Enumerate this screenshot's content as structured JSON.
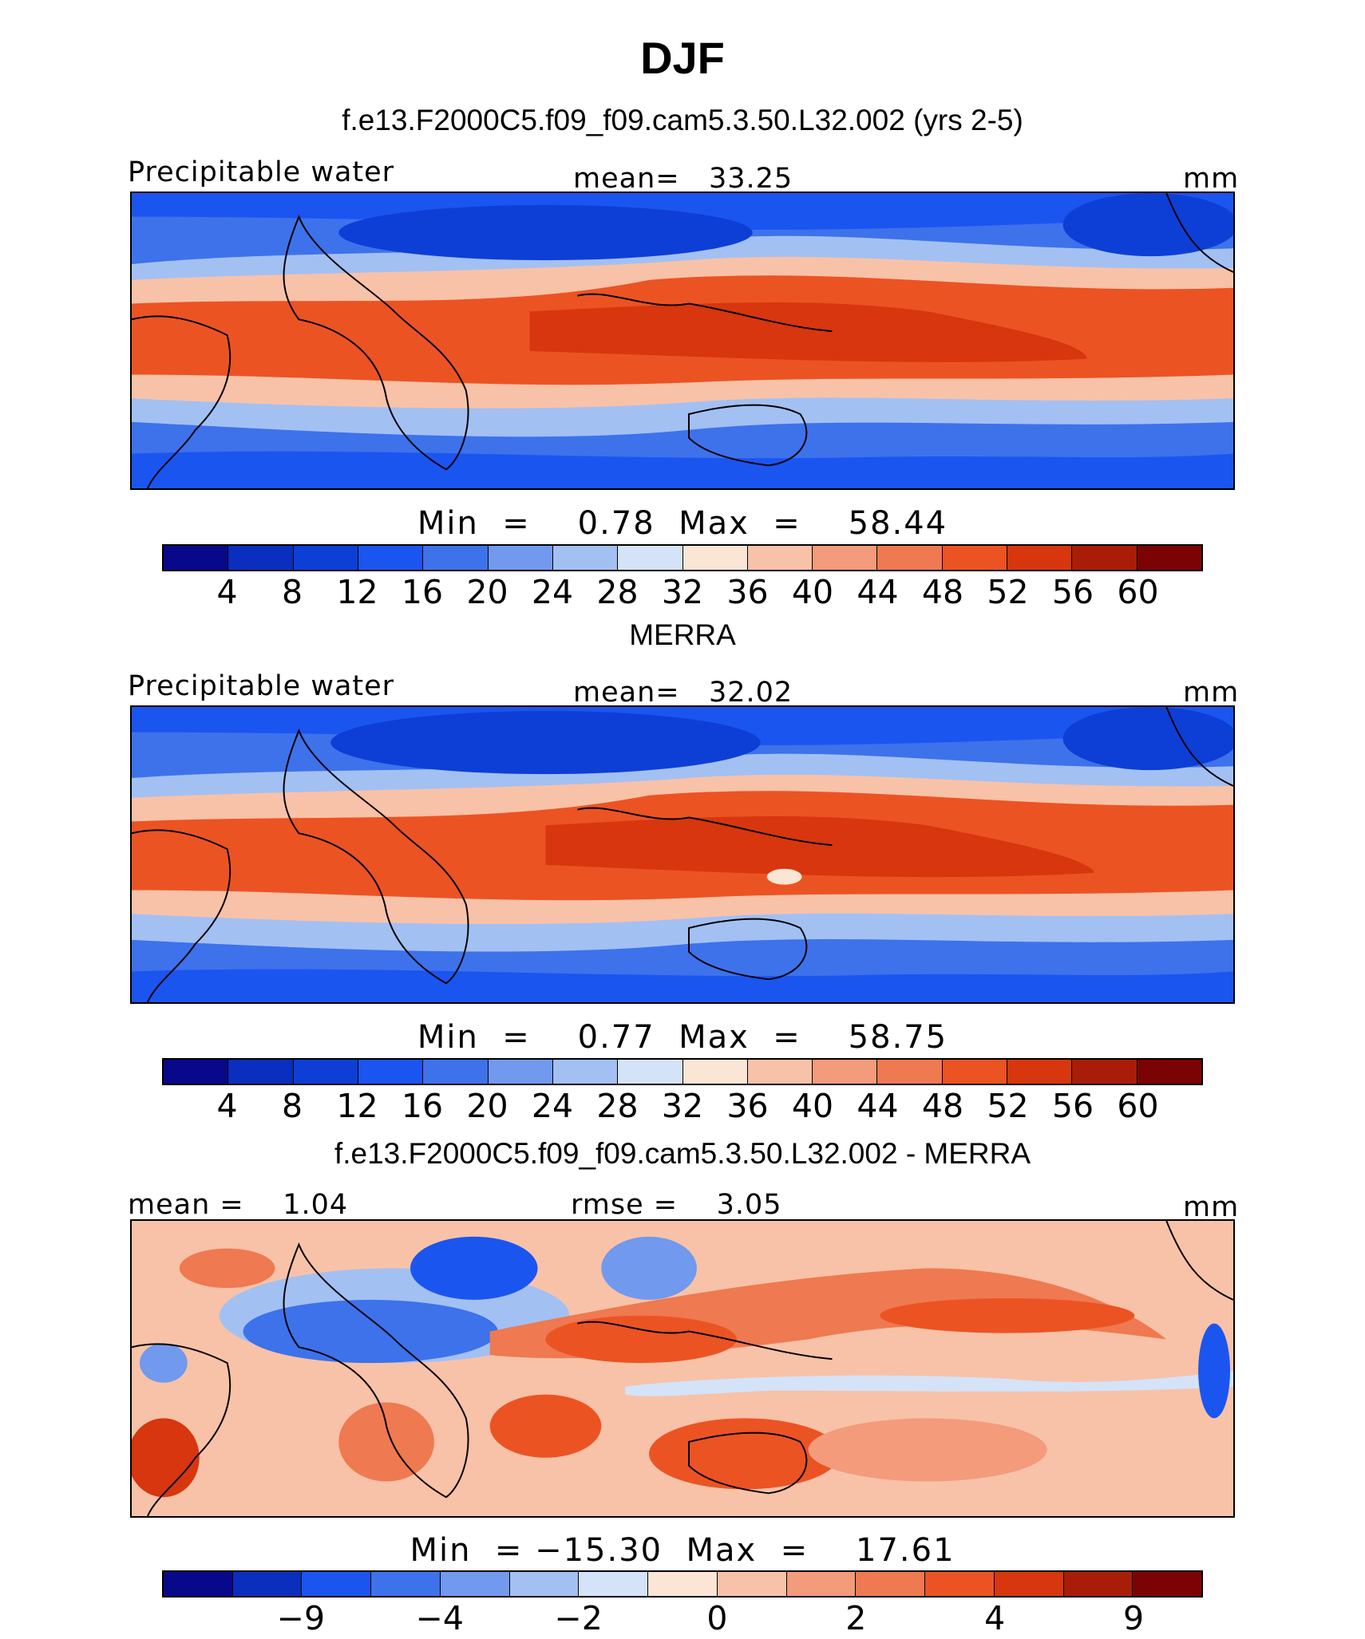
{
  "title": "DJF",
  "panels": [
    {
      "id": "model",
      "header": "f.e13.F2000C5.f09_f09.cam5.3.50.L32.002 (yrs 2-5)",
      "left_label": "Precipitable water",
      "center_label": "mean=   33.25",
      "right_label": "mm",
      "minmax": "Min  =    0.78  Max  =    58.44",
      "colorbar": {
        "colors": [
          "#08088a",
          "#0a2ebd",
          "#0d3fd6",
          "#1b55f0",
          "#3d72eb",
          "#7199ee",
          "#a3c0f3",
          "#d4e3f8",
          "#fbe5d4",
          "#f8c2a8",
          "#f39b7b",
          "#ef7950",
          "#ec5323",
          "#d7360e",
          "#a91d08",
          "#7c0303"
        ],
        "ticks": [
          "4",
          "8",
          "12",
          "16",
          "20",
          "24",
          "28",
          "32",
          "36",
          "40",
          "44",
          "48",
          "52",
          "56",
          "60"
        ]
      }
    },
    {
      "id": "obs",
      "header": "MERRA",
      "left_label": "Precipitable water",
      "center_label": "mean=   32.02",
      "right_label": "mm",
      "minmax": "Min  =    0.77  Max  =    58.75",
      "colorbar": {
        "colors": [
          "#08088a",
          "#0a2ebd",
          "#0d3fd6",
          "#1b55f0",
          "#3d72eb",
          "#7199ee",
          "#a3c0f3",
          "#d4e3f8",
          "#fbe5d4",
          "#f8c2a8",
          "#f39b7b",
          "#ef7950",
          "#ec5323",
          "#d7360e",
          "#a91d08",
          "#7c0303"
        ],
        "ticks": [
          "4",
          "8",
          "12",
          "16",
          "20",
          "24",
          "28",
          "32",
          "36",
          "40",
          "44",
          "48",
          "52",
          "56",
          "60"
        ]
      }
    },
    {
      "id": "diff",
      "header": "f.e13.F2000C5.f09_f09.cam5.3.50.L32.002 - MERRA",
      "left_label": "mean =    1.04",
      "center_label": "rmse =    3.05",
      "right_label": "mm",
      "minmax": "Min  = −15.30  Max  =    17.61",
      "colorbar": {
        "colors": [
          "#08088a",
          "#0a2ebd",
          "#1b55f0",
          "#3d72eb",
          "#7199ee",
          "#a3c0f3",
          "#d4e3f8",
          "#fbe5d4",
          "#f8c2a8",
          "#f39b7b",
          "#ef7950",
          "#ec5323",
          "#d7360e",
          "#a91d08",
          "#7c0303"
        ],
        "ticks": [
          "−9",
          "−4",
          "−2",
          "0",
          "2",
          "4",
          "9"
        ],
        "tick_positions": [
          2,
          4,
          6,
          8,
          10,
          12,
          14
        ]
      }
    }
  ]
}
